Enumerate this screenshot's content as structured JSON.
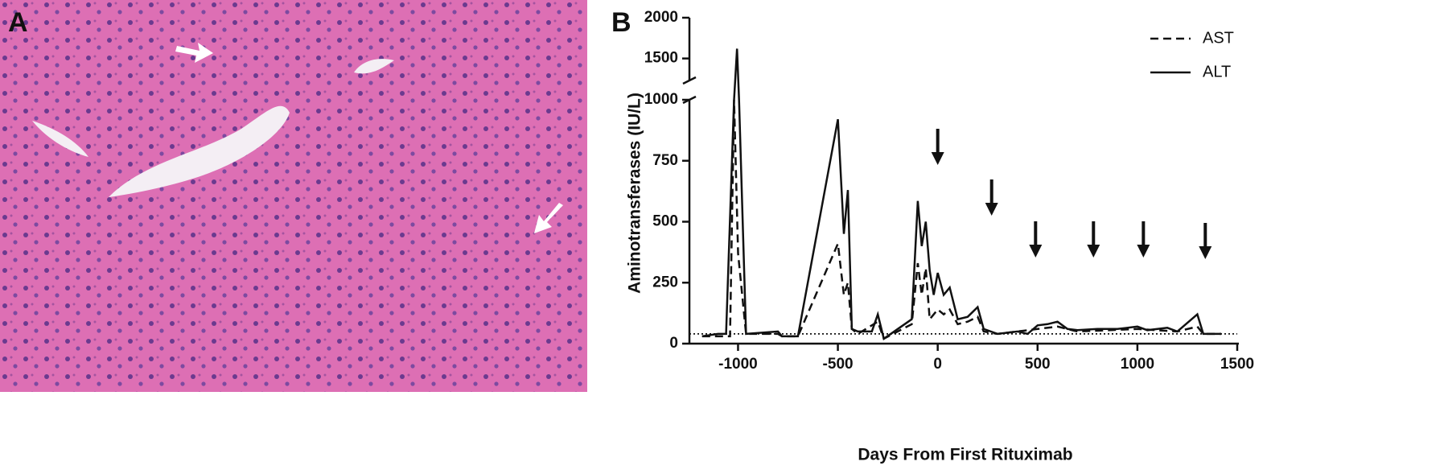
{
  "panel_a": {
    "label": "A"
  },
  "chart_data": {
    "type": "line",
    "panel_label": "B",
    "xlabel": "Days From First Rituximab",
    "ylabel": "Aminotransferases (IU/L)",
    "xlim": [
      -1250,
      1500
    ],
    "xticks": [
      -1000,
      -500,
      0,
      500,
      1000,
      1500
    ],
    "ylim": [
      0,
      1000
    ],
    "yticks": [
      0,
      250,
      500,
      750,
      1000
    ],
    "ylim_upper": [
      1250,
      2000
    ],
    "yticks_upper": [
      1500,
      2000
    ],
    "reference_line": 40,
    "dose_days": [
      0,
      270,
      490,
      780,
      1030,
      1340
    ],
    "legend": "upper right",
    "series": [
      {
        "name": "AST",
        "color": "#111111",
        "dashed": true,
        "x": [
          -1180,
          -1100,
          -1040,
          -1020,
          -1000,
          -960,
          -800,
          -780,
          -700,
          -500,
          -470,
          -450,
          -430,
          -400,
          -300,
          -270,
          -200,
          -130,
          -100,
          -80,
          -60,
          -40,
          0,
          30,
          60,
          100,
          150,
          200,
          230,
          300,
          500,
          600,
          700,
          1000,
          1200,
          1300,
          1330,
          1420
        ],
        "values": [
          30,
          30,
          30,
          1000,
          370,
          40,
          40,
          30,
          30,
          410,
          200,
          250,
          60,
          40,
          90,
          20,
          50,
          80,
          330,
          200,
          310,
          100,
          140,
          120,
          140,
          80,
          90,
          110,
          50,
          40,
          60,
          70,
          50,
          60,
          50,
          70,
          40,
          40
        ]
      },
      {
        "name": "ALT",
        "color": "#111111",
        "dashed": false,
        "x": [
          -1180,
          -1100,
          -1060,
          -1020,
          -1005,
          -995,
          -960,
          -800,
          -780,
          -700,
          -500,
          -470,
          -450,
          -430,
          -400,
          -330,
          -300,
          -270,
          -200,
          -130,
          -100,
          -80,
          -60,
          -40,
          -20,
          0,
          30,
          60,
          100,
          150,
          200,
          230,
          300,
          400,
          450,
          500,
          550,
          600,
          650,
          700,
          800,
          900,
          1000,
          1050,
          1150,
          1200,
          1300,
          1330,
          1420
        ],
        "values": [
          30,
          40,
          40,
          1000,
          1620,
          1000,
          40,
          50,
          30,
          30,
          920,
          450,
          630,
          60,
          50,
          50,
          120,
          20,
          60,
          100,
          585,
          400,
          500,
          300,
          200,
          290,
          200,
          230,
          100,
          110,
          150,
          60,
          40,
          50,
          40,
          75,
          80,
          90,
          60,
          55,
          60,
          60,
          70,
          55,
          65,
          50,
          120,
          40,
          40
        ]
      }
    ]
  }
}
